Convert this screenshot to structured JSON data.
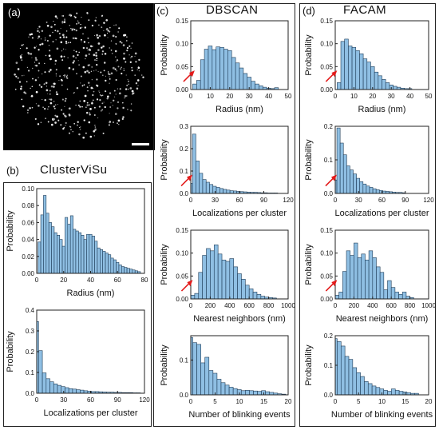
{
  "panels": {
    "a": "(a)",
    "b": "(b)",
    "c": "(c)",
    "d": "(d)"
  },
  "titles": {
    "b": "ClusterViSu",
    "c": "DBSCAN",
    "d": "FACAM"
  },
  "colors": {
    "bar_fill": "#8fbfe3",
    "bar_stroke": "#1d3b57",
    "arrow": "#e31b1b",
    "frame": "#222222"
  },
  "chart_data": [
    {
      "id": "b1",
      "type": "bar",
      "ylabel": "Probability",
      "xlabel": "Radius (nm)",
      "xlim": [
        0,
        80
      ],
      "ylim": [
        0,
        0.1
      ],
      "bin_start": 2,
      "bin_width": 2,
      "xticks": [
        0,
        20,
        40,
        60,
        80
      ],
      "yticks": [
        0.0,
        0.02,
        0.04,
        0.06,
        0.08,
        0.1
      ],
      "ytick_labels": [
        "0.00",
        "0.02",
        "0.04",
        "0.06",
        "0.08",
        "0.10"
      ],
      "values": [
        0.037,
        0.069,
        0.092,
        0.071,
        0.06,
        0.055,
        0.048,
        0.045,
        0.04,
        0.032,
        0.066,
        0.058,
        0.068,
        0.052,
        0.05,
        0.048,
        0.045,
        0.04,
        0.046,
        0.046,
        0.044,
        0.038,
        0.03,
        0.028,
        0.026,
        0.024,
        0.022,
        0.018,
        0.016,
        0.013,
        0.01,
        0.008,
        0.007,
        0.006,
        0.005,
        0.004,
        0.003,
        0.002
      ],
      "arrow": false
    },
    {
      "id": "b2",
      "type": "bar",
      "ylabel": "Probability",
      "xlabel": "Localizations per cluster",
      "xlim": [
        0,
        120
      ],
      "ylim": [
        0,
        0.4
      ],
      "bin_start": 0,
      "bin_width": 4.2,
      "xticks": [
        0,
        30,
        60,
        90,
        120
      ],
      "yticks": [
        0.0,
        0.1,
        0.2,
        0.3,
        0.4
      ],
      "ytick_labels": [
        "0.0",
        "0.1",
        "0.2",
        "0.3",
        "0.4"
      ],
      "values": [
        0.345,
        0.205,
        0.098,
        0.07,
        0.055,
        0.045,
        0.038,
        0.032,
        0.027,
        0.022,
        0.02,
        0.017,
        0.015,
        0.012,
        0.01,
        0.008,
        0.008,
        0.007,
        0.006,
        0.005,
        0.005,
        0.004,
        0.004,
        0.003,
        0.003,
        0.003,
        0.002,
        0.002
      ],
      "arrow": false
    },
    {
      "id": "c1",
      "type": "bar",
      "ylabel": "Probability",
      "xlabel": "Radius (nm)",
      "xlim": [
        0,
        50
      ],
      "ylim": [
        0,
        0.15
      ],
      "bin_start": 2,
      "bin_width": 2,
      "xticks": [
        0,
        10,
        20,
        30,
        40,
        50
      ],
      "yticks": [
        0.0,
        0.05,
        0.1,
        0.15
      ],
      "ytick_labels": [
        "0.00",
        "0.05",
        "0.10",
        "0.15"
      ],
      "values": [
        0.012,
        0.02,
        0.065,
        0.088,
        0.095,
        0.087,
        0.093,
        0.092,
        0.088,
        0.085,
        0.07,
        0.058,
        0.047,
        0.035,
        0.027,
        0.018,
        0.012,
        0.008,
        0.005,
        0.003,
        0.002,
        0.004
      ],
      "arrow": true,
      "arrow_x": 2
    },
    {
      "id": "c2",
      "type": "bar",
      "ylabel": "Probability",
      "xlabel": "Localizations per cluster",
      "xlim": [
        0,
        120
      ],
      "ylim": [
        0,
        0.3
      ],
      "bin_start": 0,
      "bin_width": 4.2,
      "xticks": [
        0,
        30,
        60,
        90,
        120
      ],
      "yticks": [
        0.0,
        0.1,
        0.2,
        0.3
      ],
      "ytick_labels": [
        "0.0",
        "0.1",
        "0.2",
        "0.3"
      ],
      "values": [
        0.045,
        0.265,
        0.145,
        0.09,
        0.062,
        0.05,
        0.04,
        0.032,
        0.027,
        0.022,
        0.018,
        0.015,
        0.012,
        0.011,
        0.009,
        0.008,
        0.007,
        0.006,
        0.005,
        0.005,
        0.004,
        0.003,
        0.003,
        0.002,
        0.002,
        0.002
      ],
      "arrow": true,
      "arrow_x": 2
    },
    {
      "id": "c3",
      "type": "bar",
      "ylabel": "Probability",
      "xlabel": "Nearest neighbors (nm)",
      "xlim": [
        0,
        1000
      ],
      "ylim": [
        0,
        0.15
      ],
      "bin_start": 20,
      "bin_width": 40,
      "xticks": [
        0,
        200,
        400,
        600,
        800,
        1000
      ],
      "yticks": [
        0.0,
        0.05,
        0.1,
        0.15
      ],
      "ytick_labels": [
        "0.00",
        "0.05",
        "0.10",
        "0.15"
      ],
      "values": [
        0.008,
        0.012,
        0.058,
        0.095,
        0.11,
        0.105,
        0.118,
        0.098,
        0.085,
        0.082,
        0.088,
        0.07,
        0.055,
        0.043,
        0.03,
        0.022,
        0.015,
        0.01,
        0.006,
        0.004,
        0.003,
        0.002
      ],
      "arrow": true,
      "arrow_x": 20
    },
    {
      "id": "c4",
      "type": "bar",
      "ylabel": "Probability",
      "xlabel": "Number of blinking events",
      "xlim": [
        0,
        20
      ],
      "ylim": [
        0,
        0.17
      ],
      "bin_start": 0,
      "bin_width": 0.83,
      "xticks": [
        0,
        5,
        10,
        15,
        20
      ],
      "yticks": [
        0.0,
        0.1
      ],
      "ytick_labels": [
        "0.0",
        "0.1"
      ],
      "values": [
        0.165,
        0.15,
        0.145,
        0.092,
        0.108,
        0.07,
        0.062,
        0.045,
        0.035,
        0.028,
        0.022,
        0.018,
        0.015,
        0.012,
        0.013,
        0.012,
        0.011,
        0.01,
        0.012,
        0.009,
        0.007,
        0.005,
        0.003,
        0.002
      ],
      "arrow": false
    },
    {
      "id": "d1",
      "type": "bar",
      "ylabel": "Probability",
      "xlabel": "Radius (nm)",
      "xlim": [
        0,
        50
      ],
      "ylim": [
        0,
        0.15
      ],
      "bin_start": 2,
      "bin_width": 2,
      "xticks": [
        0,
        10,
        20,
        30,
        40,
        50
      ],
      "yticks": [
        0.0,
        0.05,
        0.1,
        0.15
      ],
      "ytick_labels": [
        "0.00",
        "0.05",
        "0.10",
        "0.15"
      ],
      "values": [
        0.015,
        0.105,
        0.11,
        0.095,
        0.092,
        0.085,
        0.078,
        0.067,
        0.06,
        0.05,
        0.038,
        0.03,
        0.022,
        0.015,
        0.01,
        0.007,
        0.005,
        0.003,
        0.002,
        0.002
      ],
      "arrow": true,
      "arrow_x": 1
    },
    {
      "id": "d2",
      "type": "bar",
      "ylabel": "Probability",
      "xlabel": "Localizations per cluster",
      "xlim": [
        0,
        120
      ],
      "ylim": [
        0,
        0.2
      ],
      "bin_start": 0,
      "bin_width": 4.2,
      "xticks": [
        0,
        30,
        60,
        90,
        120
      ],
      "yticks": [
        0.0,
        0.1,
        0.2
      ],
      "ytick_labels": [
        "0.0",
        "0.1",
        "0.2"
      ],
      "values": [
        0.04,
        0.195,
        0.15,
        0.115,
        0.082,
        0.07,
        0.058,
        0.045,
        0.035,
        0.028,
        0.022,
        0.018,
        0.014,
        0.011,
        0.009,
        0.007,
        0.006,
        0.005,
        0.004,
        0.003,
        0.003,
        0.002
      ],
      "arrow": true,
      "arrow_x": 2
    },
    {
      "id": "d3",
      "type": "bar",
      "ylabel": "Probability",
      "xlabel": "Nearest neighbors (nm)",
      "xlim": [
        0,
        1000
      ],
      "ylim": [
        0,
        0.15
      ],
      "bin_start": 20,
      "bin_width": 40,
      "xticks": [
        0,
        200,
        400,
        600,
        800,
        1000
      ],
      "yticks": [
        0.0,
        0.05,
        0.1,
        0.15
      ],
      "ytick_labels": [
        "0.00",
        "0.05",
        "0.10",
        "0.15"
      ],
      "values": [
        0.008,
        0.015,
        0.06,
        0.105,
        0.095,
        0.122,
        0.09,
        0.098,
        0.085,
        0.105,
        0.09,
        0.07,
        0.058,
        0.02,
        0.04,
        0.025,
        0.015,
        0.01,
        0.015,
        0.006,
        0.003
      ],
      "arrow": true,
      "arrow_x": 20
    },
    {
      "id": "d4",
      "type": "bar",
      "ylabel": "Probability",
      "xlabel": "Number of blinking events",
      "xlim": [
        0,
        20
      ],
      "ylim": [
        0,
        0.2
      ],
      "bin_start": 0,
      "bin_width": 0.83,
      "xticks": [
        0,
        5,
        10,
        15,
        20
      ],
      "yticks": [
        0.0,
        0.1,
        0.2
      ],
      "ytick_labels": [
        "0.0",
        "0.1",
        "0.2"
      ],
      "values": [
        0.19,
        0.18,
        0.165,
        0.13,
        0.12,
        0.092,
        0.075,
        0.062,
        0.045,
        0.038,
        0.03,
        0.025,
        0.02,
        0.015,
        0.012,
        0.02,
        0.015,
        0.012,
        0.01,
        0.007,
        0.005,
        0.005
      ],
      "arrow": false
    }
  ]
}
